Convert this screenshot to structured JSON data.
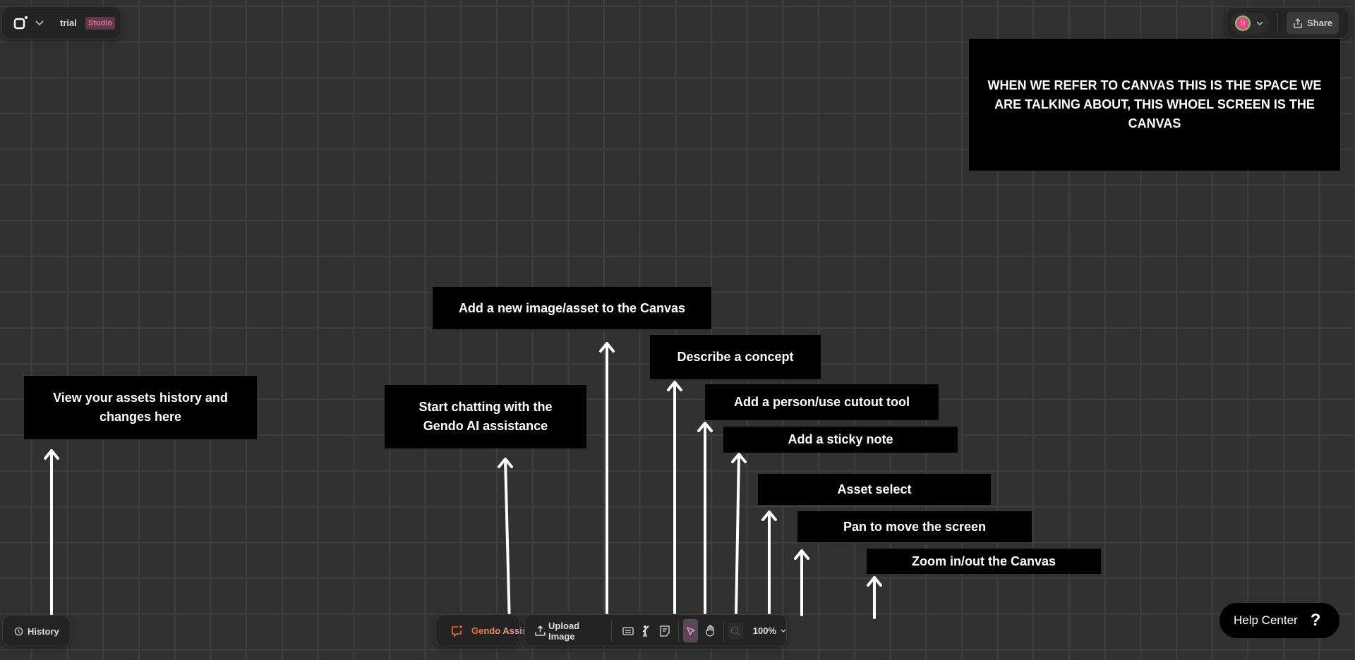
{
  "header": {
    "project_name": "trial",
    "plan_badge": "Studio",
    "avatar_initial": "B",
    "share_label": "Share"
  },
  "notes": {
    "canvas": "WHEN WE REFER TO CANVAS THIS IS THE SPACE WE ARE TALKING ABOUT, THIS WHOEL SCREEN IS THE CANVAS",
    "upload": "Add a new image/asset to the  Canvas",
    "describe": "Describe a concept",
    "person": "Add a person/use cutout tool",
    "sticky": "Add a sticky note",
    "select": "Asset select",
    "pan": "Pan to move the screen",
    "zoom": "Zoom in/out the Canvas",
    "history": "View your assets history and changes here",
    "chat": "Start chatting with the Gendo AI assistance"
  },
  "toolbar": {
    "history_label": "History",
    "assistant_label": "Gendo Assistant",
    "upload_label": "Upload Image",
    "zoom_level": "100%"
  },
  "help": {
    "label": "Help Center",
    "icon": "?"
  },
  "colors": {
    "accent_orange": "#f06a2a",
    "select_active_bg": "#5a4656",
    "studio_badge_bg": "#5c3a4a",
    "avatar": "#e8457a"
  }
}
